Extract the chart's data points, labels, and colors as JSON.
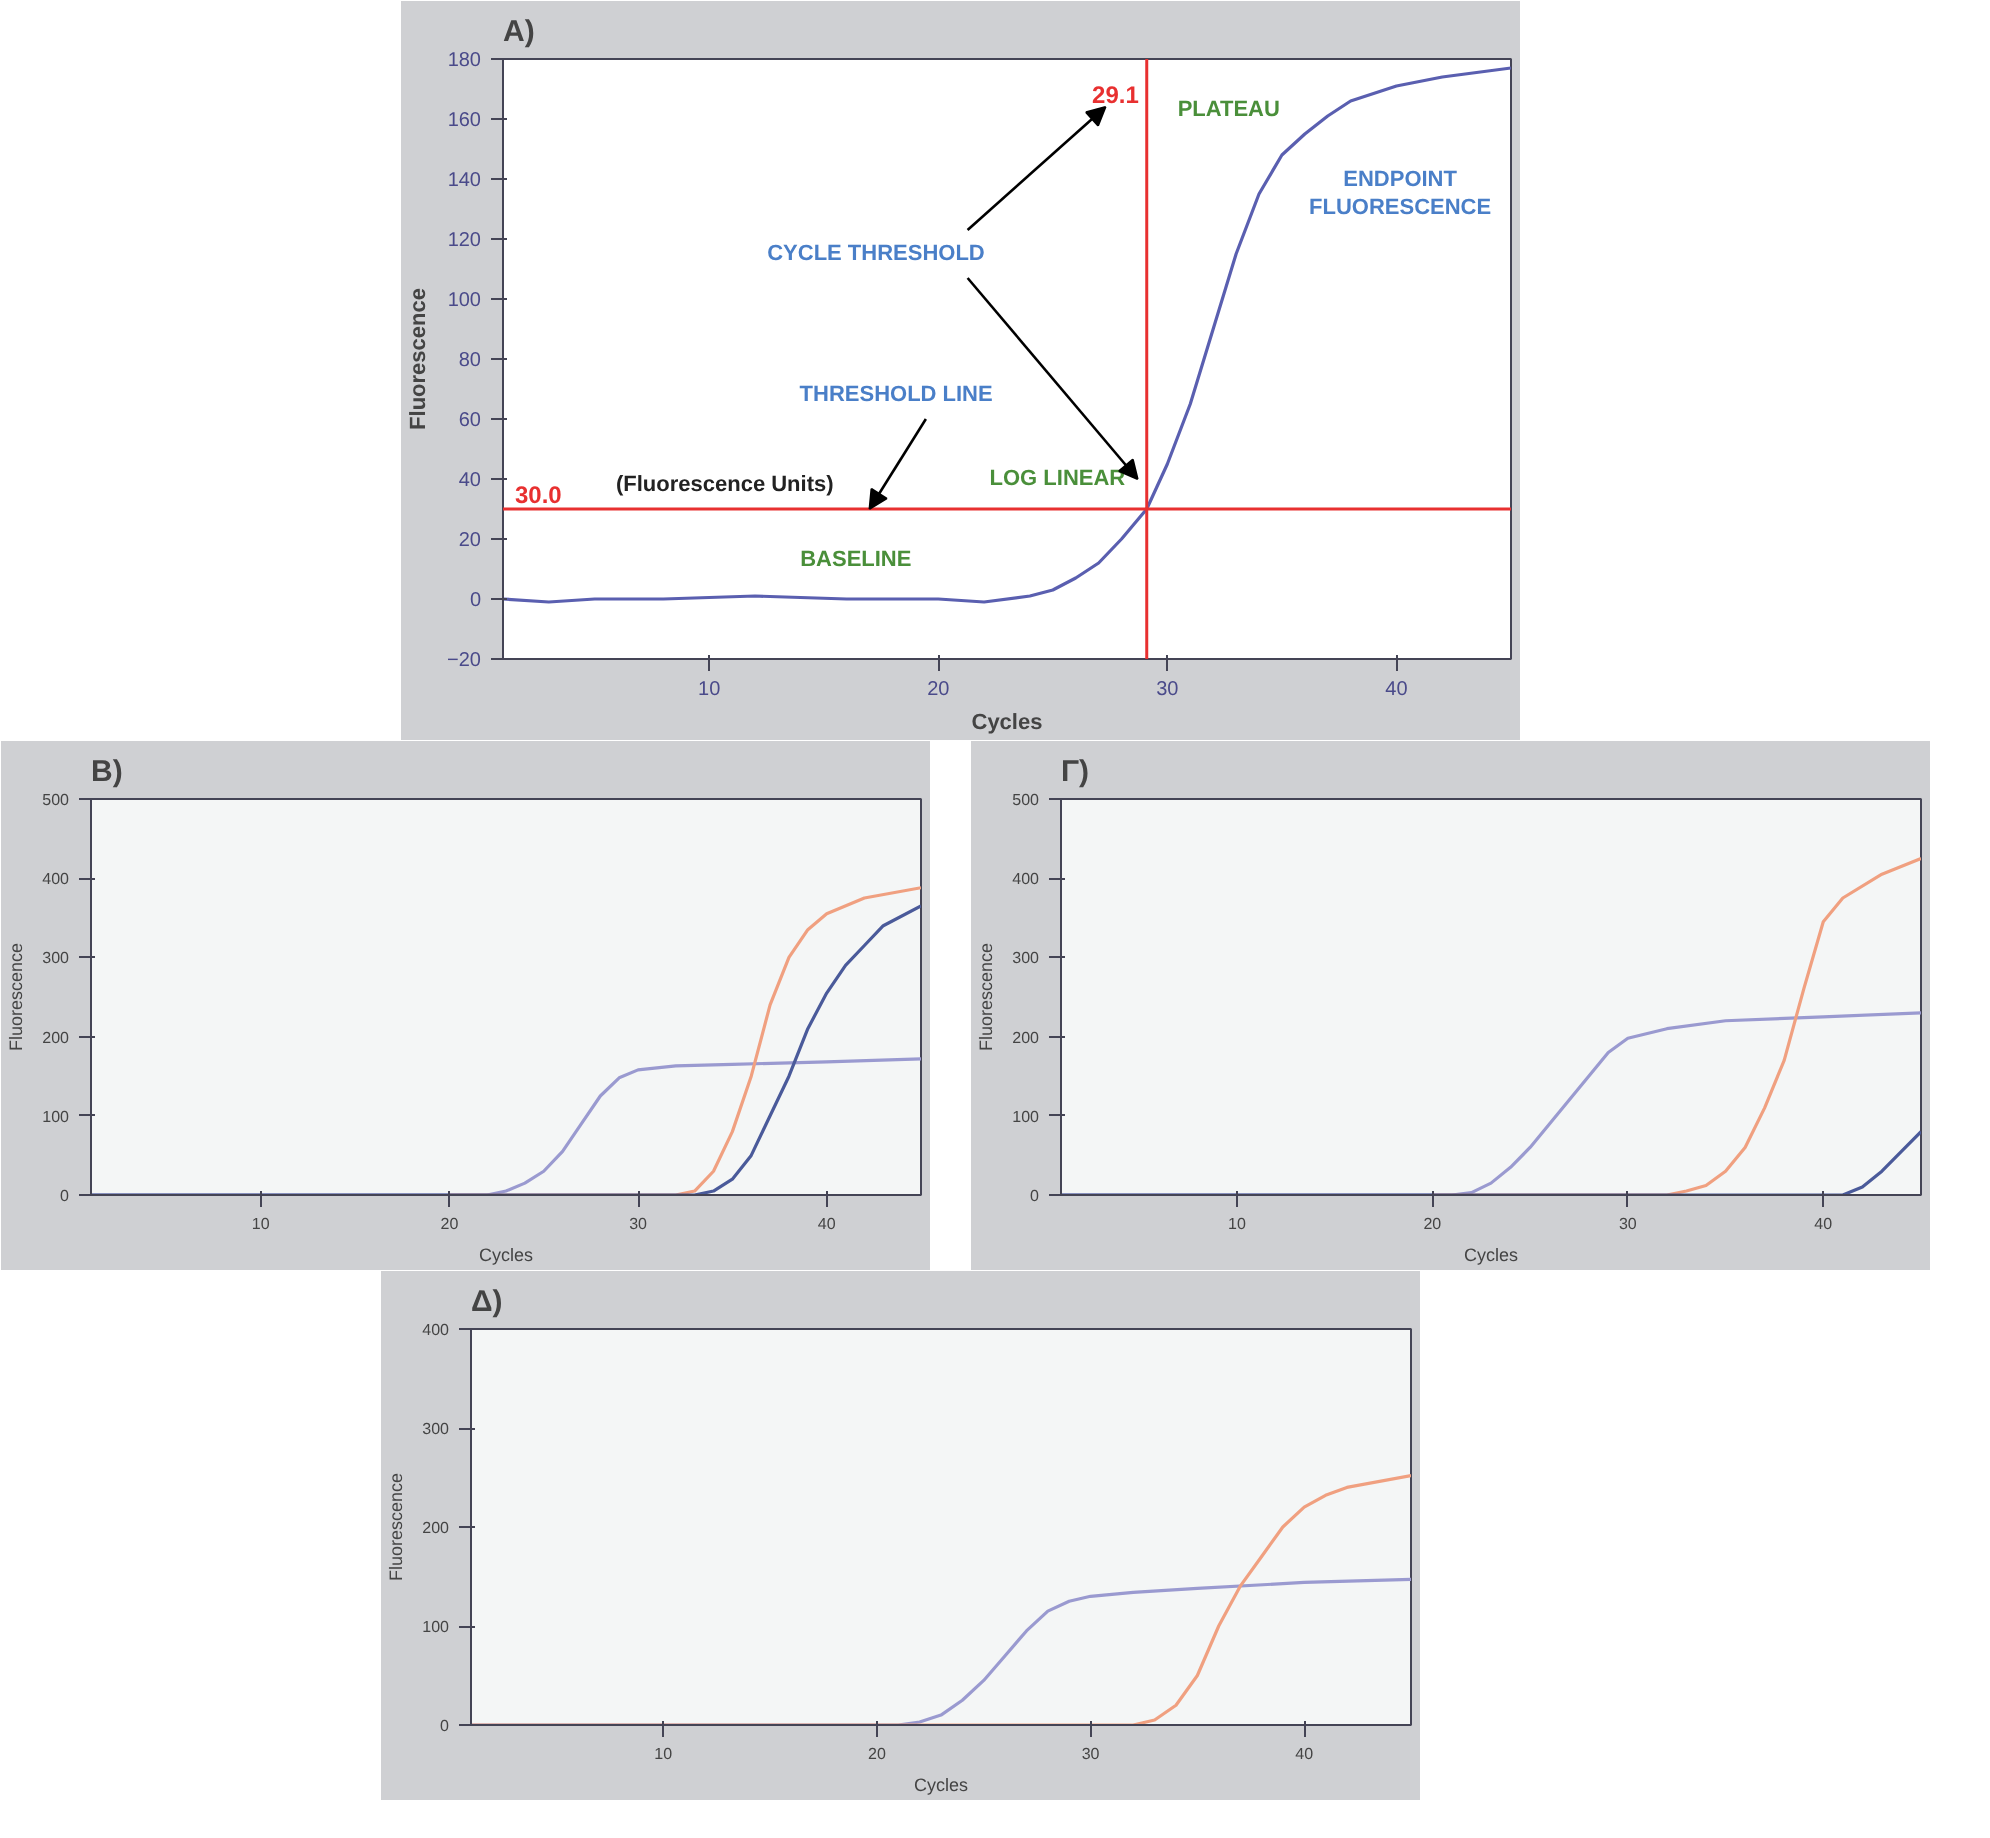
{
  "chart_data": [
    {
      "type": "line",
      "title": "Α)",
      "xlabel": "Cycles",
      "ylabel": "Fluorescence",
      "xlim": [
        1,
        45
      ],
      "ylim": [
        -20,
        180
      ],
      "xticks": [
        10,
        20,
        30,
        40
      ],
      "yticks": [
        -20,
        0,
        20,
        40,
        60,
        80,
        100,
        120,
        140,
        160,
        180
      ],
      "grid": false,
      "series": [
        {
          "color": "#5a5fb0",
          "x": [
            1,
            3,
            5,
            8,
            12,
            16,
            20,
            22,
            24,
            25,
            26,
            27,
            28,
            29.1,
            30,
            31,
            32,
            33,
            34,
            35,
            36,
            37,
            38,
            40,
            42,
            45
          ],
          "values": [
            0,
            -1,
            0,
            0,
            1,
            0,
            0,
            -1,
            1,
            3,
            7,
            12,
            20,
            30,
            45,
            65,
            90,
            115,
            135,
            148,
            155,
            161,
            166,
            171,
            174,
            177
          ]
        }
      ],
      "ref_lines": [
        {
          "axis": "x",
          "value": 29.1,
          "label": "29.1",
          "color": "#e83030"
        },
        {
          "axis": "y",
          "value": 30,
          "label": "30.0",
          "color": "#e83030"
        }
      ],
      "annotations": [
        "(Fluorescence Units)",
        "CYCLE THRESHOLD",
        {
          "text": "THRESHOLD LINE",
          "x": 17,
          "y": 30
        },
        "PLATEAU",
        "ENDPOINT\nFLUORESCENCE",
        "LOG LINEAR",
        "BASELINE"
      ]
    },
    {
      "type": "line",
      "title": "Β)",
      "xlabel": "Cycles",
      "ylabel": "Fluorescence",
      "xlim": [
        1,
        45
      ],
      "ylim": [
        0,
        500
      ],
      "xticks": [
        10,
        20,
        30,
        40
      ],
      "yticks": [
        0,
        100,
        200,
        300,
        400,
        500
      ],
      "grid": false,
      "series": [
        {
          "color": "#9a9ad0",
          "x": [
            1,
            10,
            22,
            23,
            24,
            25,
            26,
            27,
            28,
            29,
            30,
            32,
            35,
            40,
            45
          ],
          "values": [
            0,
            0,
            0,
            5,
            15,
            30,
            55,
            90,
            125,
            148,
            158,
            163,
            165,
            168,
            172
          ]
        },
        {
          "color": "#f0a080",
          "x": [
            20,
            32,
            33,
            34,
            35,
            36,
            37,
            38,
            39,
            40,
            42,
            45
          ],
          "values": [
            0,
            0,
            5,
            30,
            80,
            150,
            240,
            300,
            335,
            355,
            375,
            388
          ]
        },
        {
          "color": "#4a5a9a",
          "x": [
            1,
            10,
            20,
            33,
            34,
            35,
            36,
            37,
            38,
            39,
            40,
            41,
            42,
            43,
            45
          ],
          "values": [
            0,
            0,
            0,
            0,
            5,
            20,
            50,
            100,
            150,
            210,
            255,
            290,
            315,
            340,
            365
          ]
        }
      ]
    },
    {
      "type": "line",
      "title": "Γ)",
      "xlabel": "Cycles",
      "ylabel": "Fluorescence",
      "xlim": [
        1,
        45
      ],
      "ylim": [
        0,
        500
      ],
      "xticks": [
        10,
        20,
        30,
        40
      ],
      "yticks": [
        0,
        100,
        200,
        300,
        400,
        500
      ],
      "grid": false,
      "series": [
        {
          "color": "#9a9ad0",
          "x": [
            1,
            10,
            21,
            22,
            23,
            24,
            25,
            26,
            27,
            28,
            29,
            30,
            32,
            35,
            40,
            45
          ],
          "values": [
            0,
            0,
            0,
            3,
            15,
            35,
            60,
            90,
            120,
            150,
            180,
            198,
            210,
            220,
            225,
            230
          ]
        },
        {
          "color": "#f0a080",
          "x": [
            20,
            32,
            33,
            34,
            35,
            36,
            37,
            38,
            39,
            40,
            41,
            43,
            45
          ],
          "values": [
            0,
            0,
            5,
            12,
            30,
            60,
            110,
            170,
            260,
            345,
            375,
            405,
            425
          ]
        },
        {
          "color": "#4a5a9a",
          "x": [
            1,
            10,
            20,
            30,
            41,
            42,
            43,
            44,
            45
          ],
          "values": [
            0,
            0,
            0,
            0,
            0,
            10,
            30,
            55,
            80
          ]
        }
      ]
    },
    {
      "type": "line",
      "title": "Δ)",
      "xlabel": "Cycles",
      "ylabel": "Fluorescence",
      "xlim": [
        1,
        45
      ],
      "ylim": [
        0,
        400
      ],
      "xticks": [
        10,
        20,
        30,
        40
      ],
      "yticks": [
        0,
        100,
        200,
        300,
        400
      ],
      "grid": false,
      "series": [
        {
          "color": "#9a9ad0",
          "x": [
            1,
            10,
            21,
            22,
            23,
            24,
            25,
            26,
            27,
            28,
            29,
            30,
            32,
            35,
            40,
            45
          ],
          "values": [
            0,
            0,
            0,
            3,
            10,
            25,
            45,
            70,
            95,
            115,
            125,
            130,
            134,
            138,
            144,
            147
          ]
        },
        {
          "color": "#f0a080",
          "x": [
            1,
            10,
            20,
            32,
            33,
            34,
            35,
            36,
            37,
            38,
            39,
            40,
            41,
            42,
            45
          ],
          "values": [
            0,
            0,
            0,
            0,
            5,
            20,
            50,
            100,
            140,
            170,
            200,
            220,
            232,
            240,
            252
          ]
        }
      ]
    }
  ]
}
